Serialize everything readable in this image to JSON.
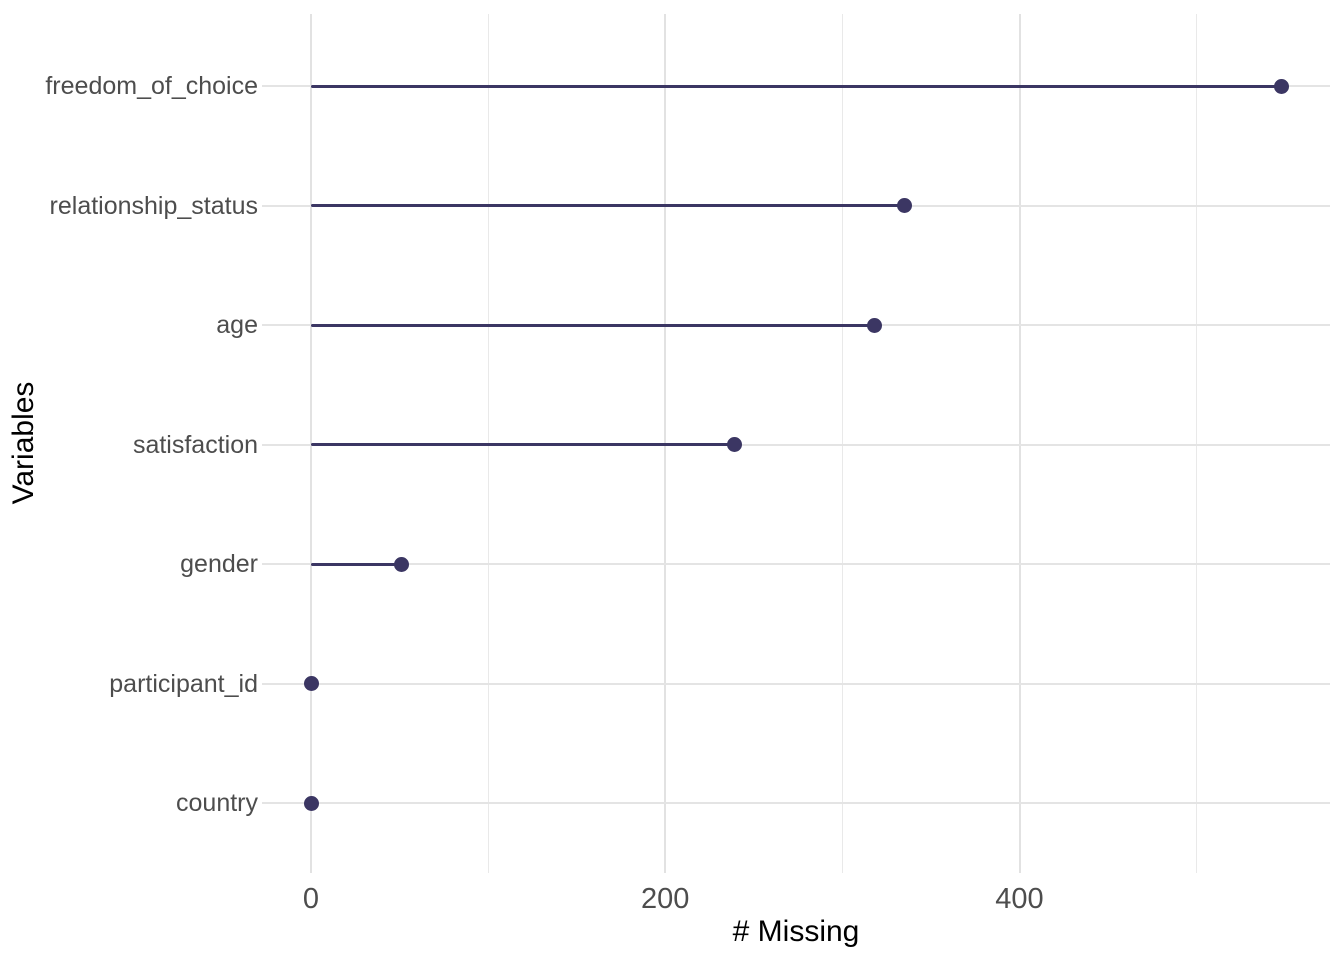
{
  "chart_data": {
    "type": "bar",
    "variant": "horizontal-lollipop",
    "title": "",
    "xlabel": "# Missing",
    "ylabel": "Variables",
    "categories": [
      "freedom_of_choice",
      "relationship_status",
      "age",
      "satisfaction",
      "gender",
      "participant_id",
      "country"
    ],
    "values": [
      548,
      335,
      318,
      239,
      51,
      0,
      0
    ],
    "x_major_ticks": [
      0,
      200,
      400
    ],
    "x_tick_labels": [
      "0",
      "200",
      "400"
    ],
    "x_minor_gridlines": [
      100,
      300,
      500
    ],
    "xlim": [
      -28,
      575
    ],
    "grid": "on",
    "legend": "none",
    "colors": {
      "lollipop": "#3B3663",
      "grid_major_v": "#E2E2E2",
      "grid_minor_v": "#E9E9E9",
      "grid_major_h": "#E4E4E4",
      "tick_label": "#4D4D4D",
      "axis_title": "#000000",
      "background": "#FFFFFF"
    }
  }
}
